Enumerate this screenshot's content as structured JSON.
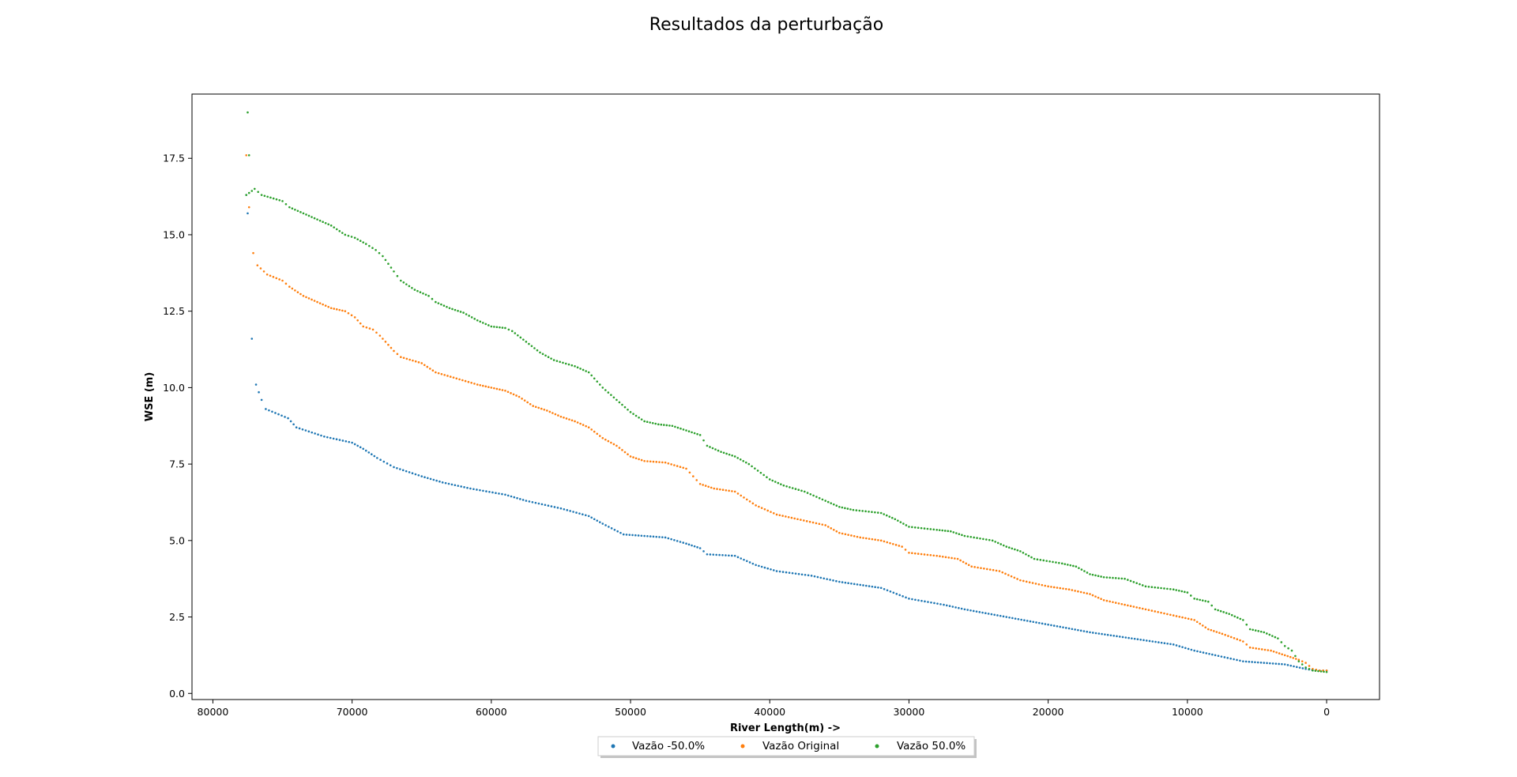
{
  "chart_data": {
    "type": "scatter",
    "title": "Resultados da perturbação",
    "xlabel": "River Length(m) ->",
    "ylabel": "WSE (m)",
    "xlim": [
      81500,
      -3800
    ],
    "ylim": [
      -0.2,
      19.6
    ],
    "x_inverted": true,
    "x_ticks": [
      80000,
      70000,
      60000,
      50000,
      40000,
      30000,
      20000,
      10000,
      0
    ],
    "y_ticks": [
      0.0,
      2.5,
      5.0,
      7.5,
      10.0,
      12.5,
      15.0,
      17.5
    ],
    "y_tick_labels": [
      "0.0",
      "2.5",
      "5.0",
      "7.5",
      "10.0",
      "12.5",
      "15.0",
      "17.5"
    ],
    "grid": false,
    "legend_position": "bottom-center",
    "series": [
      {
        "name": "Vazão -50.0%",
        "color": "#1f77b4",
        "profile": [
          [
            77600,
            16.3
          ],
          [
            77500,
            15.7
          ],
          [
            77200,
            11.6
          ],
          [
            76900,
            10.1
          ],
          [
            76500,
            9.6
          ],
          [
            76200,
            9.3
          ],
          [
            74600,
            9.0
          ],
          [
            74000,
            8.7
          ],
          [
            72000,
            8.4
          ],
          [
            70000,
            8.2
          ],
          [
            69200,
            8.0
          ],
          [
            68200,
            7.7
          ],
          [
            67000,
            7.4
          ],
          [
            65000,
            7.1
          ],
          [
            63500,
            6.9
          ],
          [
            61500,
            6.7
          ],
          [
            59000,
            6.5
          ],
          [
            57500,
            6.3
          ],
          [
            55000,
            6.05
          ],
          [
            53000,
            5.8
          ],
          [
            52000,
            5.55
          ],
          [
            50500,
            5.2
          ],
          [
            47500,
            5.1
          ],
          [
            46000,
            4.9
          ],
          [
            45000,
            4.75
          ],
          [
            44500,
            4.55
          ],
          [
            42500,
            4.5
          ],
          [
            41000,
            4.2
          ],
          [
            39500,
            4.0
          ],
          [
            37000,
            3.85
          ],
          [
            35000,
            3.65
          ],
          [
            32000,
            3.45
          ],
          [
            30000,
            3.1
          ],
          [
            27500,
            2.9
          ],
          [
            26000,
            2.75
          ],
          [
            23000,
            2.5
          ],
          [
            20000,
            2.25
          ],
          [
            17000,
            2.0
          ],
          [
            14000,
            1.8
          ],
          [
            11000,
            1.6
          ],
          [
            9500,
            1.4
          ],
          [
            8000,
            1.25
          ],
          [
            6000,
            1.05
          ],
          [
            4500,
            1.0
          ],
          [
            3000,
            0.95
          ],
          [
            1500,
            0.8
          ],
          [
            800,
            0.75
          ],
          [
            500,
            0.75
          ],
          [
            0,
            0.75
          ]
        ]
      },
      {
        "name": "Vazão Original",
        "color": "#ff7f0e",
        "profile": [
          [
            77600,
            17.6
          ],
          [
            77400,
            15.9
          ],
          [
            77100,
            14.4
          ],
          [
            76800,
            14.0
          ],
          [
            76100,
            13.7
          ],
          [
            75000,
            13.5
          ],
          [
            74500,
            13.3
          ],
          [
            73500,
            13.0
          ],
          [
            72500,
            12.8
          ],
          [
            71500,
            12.6
          ],
          [
            70500,
            12.5
          ],
          [
            69800,
            12.3
          ],
          [
            69200,
            12.0
          ],
          [
            68500,
            11.9
          ],
          [
            68000,
            11.7
          ],
          [
            67000,
            11.2
          ],
          [
            66500,
            11.0
          ],
          [
            65000,
            10.8
          ],
          [
            64000,
            10.5
          ],
          [
            62500,
            10.3
          ],
          [
            61000,
            10.1
          ],
          [
            60000,
            10.0
          ],
          [
            59000,
            9.9
          ],
          [
            58000,
            9.7
          ],
          [
            57000,
            9.4
          ],
          [
            56000,
            9.25
          ],
          [
            55000,
            9.05
          ],
          [
            54000,
            8.9
          ],
          [
            53000,
            8.7
          ],
          [
            52000,
            8.35
          ],
          [
            51000,
            8.1
          ],
          [
            50000,
            7.75
          ],
          [
            49000,
            7.6
          ],
          [
            47500,
            7.55
          ],
          [
            46000,
            7.35
          ],
          [
            45500,
            7.1
          ],
          [
            45000,
            6.85
          ],
          [
            44000,
            6.7
          ],
          [
            42500,
            6.6
          ],
          [
            41000,
            6.15
          ],
          [
            39500,
            5.85
          ],
          [
            38000,
            5.7
          ],
          [
            36000,
            5.5
          ],
          [
            35000,
            5.25
          ],
          [
            33500,
            5.1
          ],
          [
            32000,
            5.0
          ],
          [
            30500,
            4.8
          ],
          [
            30000,
            4.6
          ],
          [
            28000,
            4.5
          ],
          [
            26500,
            4.4
          ],
          [
            25500,
            4.15
          ],
          [
            23500,
            4.0
          ],
          [
            22000,
            3.7
          ],
          [
            20000,
            3.5
          ],
          [
            18500,
            3.4
          ],
          [
            17000,
            3.25
          ],
          [
            16000,
            3.05
          ],
          [
            14500,
            2.9
          ],
          [
            13000,
            2.75
          ],
          [
            11000,
            2.55
          ],
          [
            9500,
            2.4
          ],
          [
            8500,
            2.1
          ],
          [
            7500,
            1.95
          ],
          [
            6000,
            1.7
          ],
          [
            5500,
            1.5
          ],
          [
            4000,
            1.4
          ],
          [
            3000,
            1.25
          ],
          [
            2000,
            1.1
          ],
          [
            1500,
            1.0
          ],
          [
            1000,
            0.8
          ],
          [
            500,
            0.75
          ],
          [
            0,
            0.75
          ]
        ]
      },
      {
        "name": "Vazão 50.0%",
        "color": "#2ca02c",
        "profile": [
          [
            77500,
            19.0
          ],
          [
            77400,
            17.6
          ],
          [
            77600,
            16.3
          ],
          [
            77000,
            16.5
          ],
          [
            76500,
            16.3
          ],
          [
            75000,
            16.1
          ],
          [
            74500,
            15.9
          ],
          [
            73500,
            15.7
          ],
          [
            72500,
            15.5
          ],
          [
            71500,
            15.3
          ],
          [
            70500,
            15.0
          ],
          [
            69800,
            14.9
          ],
          [
            69000,
            14.7
          ],
          [
            68300,
            14.5
          ],
          [
            67800,
            14.3
          ],
          [
            67000,
            13.8
          ],
          [
            66500,
            13.5
          ],
          [
            65500,
            13.2
          ],
          [
            64500,
            13.0
          ],
          [
            64000,
            12.8
          ],
          [
            63000,
            12.6
          ],
          [
            62000,
            12.45
          ],
          [
            61000,
            12.2
          ],
          [
            60000,
            12.0
          ],
          [
            59000,
            11.95
          ],
          [
            58500,
            11.85
          ],
          [
            57500,
            11.5
          ],
          [
            56500,
            11.15
          ],
          [
            55500,
            10.9
          ],
          [
            54000,
            10.7
          ],
          [
            53000,
            10.5
          ],
          [
            52000,
            10.0
          ],
          [
            51000,
            9.6
          ],
          [
            50000,
            9.2
          ],
          [
            49000,
            8.9
          ],
          [
            48000,
            8.8
          ],
          [
            47000,
            8.75
          ],
          [
            46000,
            8.6
          ],
          [
            45000,
            8.45
          ],
          [
            44500,
            8.1
          ],
          [
            43500,
            7.9
          ],
          [
            42500,
            7.75
          ],
          [
            41500,
            7.5
          ],
          [
            40000,
            7.0
          ],
          [
            39000,
            6.8
          ],
          [
            37500,
            6.6
          ],
          [
            36000,
            6.3
          ],
          [
            35000,
            6.1
          ],
          [
            34000,
            6.0
          ],
          [
            32000,
            5.9
          ],
          [
            31000,
            5.7
          ],
          [
            30000,
            5.45
          ],
          [
            28000,
            5.35
          ],
          [
            27000,
            5.3
          ],
          [
            26000,
            5.15
          ],
          [
            24000,
            5.0
          ],
          [
            23000,
            4.8
          ],
          [
            22000,
            4.65
          ],
          [
            21000,
            4.4
          ],
          [
            19000,
            4.25
          ],
          [
            18000,
            4.15
          ],
          [
            17000,
            3.9
          ],
          [
            16000,
            3.8
          ],
          [
            14500,
            3.75
          ],
          [
            13000,
            3.5
          ],
          [
            11000,
            3.4
          ],
          [
            10000,
            3.3
          ],
          [
            9500,
            3.1
          ],
          [
            8500,
            3.0
          ],
          [
            8000,
            2.75
          ],
          [
            7000,
            2.6
          ],
          [
            6000,
            2.4
          ],
          [
            5500,
            2.1
          ],
          [
            4500,
            2.0
          ],
          [
            3500,
            1.8
          ],
          [
            3000,
            1.55
          ],
          [
            2500,
            1.4
          ],
          [
            2000,
            1.05
          ],
          [
            1500,
            0.85
          ],
          [
            1000,
            0.75
          ],
          [
            0,
            0.7
          ]
        ]
      }
    ]
  }
}
